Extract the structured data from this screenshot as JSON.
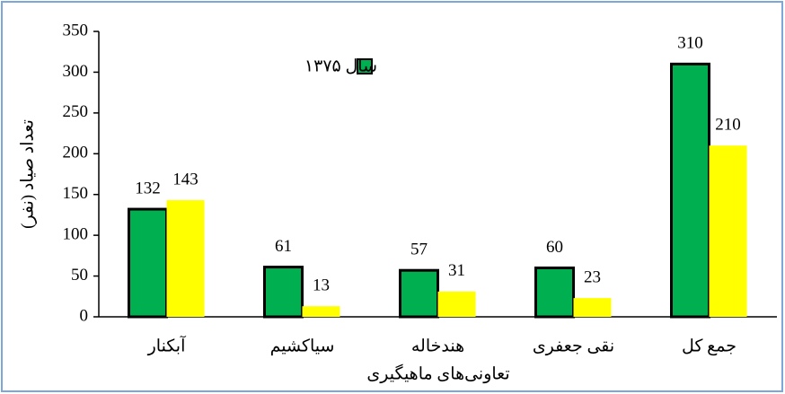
{
  "chart_data": {
    "type": "bar",
    "x_label": "تعاونی‌های ماهیگیری",
    "y_label": "تعداد صیاد (نفر)",
    "categories": [
      "آبکنار",
      "سیاکشیم",
      "هندخاله",
      "نقی جعفری",
      "جمع کل"
    ],
    "series": [
      {
        "name": "سال ۱۳۷۵",
        "color": "#00b050",
        "values": [
          132,
          61,
          57,
          60,
          310
        ]
      },
      {
        "color": "#ffff00",
        "values": [
          143,
          13,
          31,
          23,
          210
        ]
      }
    ],
    "ylim": [
      0,
      350
    ],
    "yticks": [
      0,
      50,
      100,
      150,
      200,
      250,
      300,
      350
    ],
    "grid": false,
    "legend": "top"
  }
}
